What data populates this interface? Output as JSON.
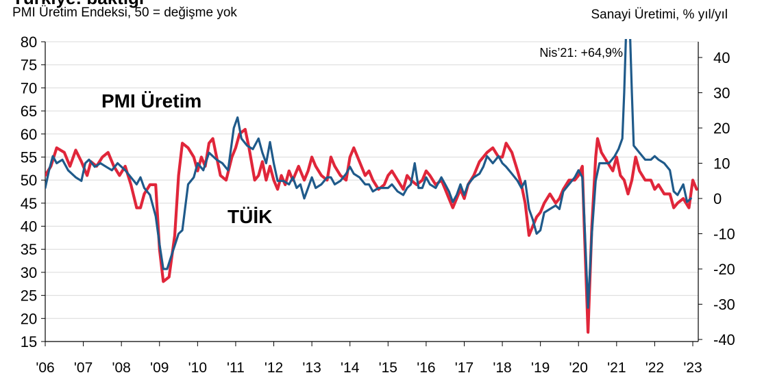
{
  "header": {
    "cut_title": "Türkiye: baktığı",
    "left_axis_title": "PMI Üretim Endeksi, 50 = değişme yok",
    "right_axis_title": "Sanayi Üretimi, % yıl/yıl"
  },
  "colors": {
    "pmi": "#e0263a",
    "tuik": "#1f5a8a",
    "title_cut": "#1f5a8a"
  },
  "chart_data": {
    "type": "line",
    "x_tick_labels": [
      "'06",
      "'07",
      "'08",
      "'09",
      "'10",
      "'11",
      "'12",
      "'13",
      "'14",
      "'15",
      "'16",
      "'17",
      "'18",
      "'19",
      "'20",
      "'21",
      "'22",
      "'23"
    ],
    "y_left": {
      "min": 15,
      "max": 80,
      "ticks": [
        15,
        20,
        25,
        30,
        35,
        40,
        45,
        50,
        55,
        60,
        65,
        70,
        75,
        80
      ]
    },
    "y_right": {
      "min": -40,
      "max": 45,
      "ticks": [
        -40,
        -30,
        -20,
        -10,
        0,
        10,
        20,
        30,
        40
      ]
    },
    "grid": true,
    "series": [
      {
        "name": "PMI Üretim",
        "axis": "left",
        "points": [
          [
            2006.0,
            51
          ],
          [
            2006.15,
            53
          ],
          [
            2006.3,
            57
          ],
          [
            2006.5,
            56
          ],
          [
            2006.65,
            53
          ],
          [
            2006.8,
            56.5
          ],
          [
            2006.95,
            54
          ],
          [
            2007.1,
            51
          ],
          [
            2007.2,
            54
          ],
          [
            2007.35,
            53
          ],
          [
            2007.5,
            55
          ],
          [
            2007.65,
            56
          ],
          [
            2007.8,
            53
          ],
          [
            2007.95,
            51
          ],
          [
            2008.1,
            53
          ],
          [
            2008.25,
            49
          ],
          [
            2008.4,
            44
          ],
          [
            2008.5,
            44
          ],
          [
            2008.6,
            47
          ],
          [
            2008.75,
            49
          ],
          [
            2008.9,
            49
          ],
          [
            2009.0,
            35
          ],
          [
            2009.1,
            28
          ],
          [
            2009.25,
            29
          ],
          [
            2009.4,
            38
          ],
          [
            2009.5,
            51
          ],
          [
            2009.6,
            58
          ],
          [
            2009.75,
            57
          ],
          [
            2009.9,
            55
          ],
          [
            2010.0,
            52
          ],
          [
            2010.1,
            55
          ],
          [
            2010.2,
            53
          ],
          [
            2010.3,
            58
          ],
          [
            2010.4,
            59
          ],
          [
            2010.5,
            55
          ],
          [
            2010.6,
            51
          ],
          [
            2010.75,
            50
          ],
          [
            2010.9,
            55
          ],
          [
            2011.0,
            57
          ],
          [
            2011.1,
            60
          ],
          [
            2011.25,
            61
          ],
          [
            2011.35,
            57
          ],
          [
            2011.5,
            50
          ],
          [
            2011.6,
            51
          ],
          [
            2011.7,
            54
          ],
          [
            2011.8,
            50
          ],
          [
            2011.9,
            53
          ],
          [
            2012.0,
            50
          ],
          [
            2012.1,
            48
          ],
          [
            2012.2,
            51
          ],
          [
            2012.3,
            49
          ],
          [
            2012.4,
            52
          ],
          [
            2012.5,
            50
          ],
          [
            2012.65,
            53
          ],
          [
            2012.8,
            50
          ],
          [
            2012.9,
            52
          ],
          [
            2013.0,
            55
          ],
          [
            2013.1,
            53
          ],
          [
            2013.25,
            51
          ],
          [
            2013.4,
            50
          ],
          [
            2013.5,
            55
          ],
          [
            2013.6,
            53
          ],
          [
            2013.75,
            51
          ],
          [
            2013.9,
            50
          ],
          [
            2014.0,
            55
          ],
          [
            2014.1,
            57
          ],
          [
            2014.25,
            54
          ],
          [
            2014.4,
            51
          ],
          [
            2014.5,
            52
          ],
          [
            2014.6,
            50
          ],
          [
            2014.75,
            48
          ],
          [
            2014.9,
            49
          ],
          [
            2015.0,
            51
          ],
          [
            2015.1,
            52
          ],
          [
            2015.25,
            50
          ],
          [
            2015.4,
            48
          ],
          [
            2015.5,
            51
          ],
          [
            2015.6,
            50
          ],
          [
            2015.75,
            49
          ],
          [
            2015.9,
            50
          ],
          [
            2016.0,
            52
          ],
          [
            2016.1,
            51
          ],
          [
            2016.25,
            49
          ],
          [
            2016.4,
            50
          ],
          [
            2016.5,
            48
          ],
          [
            2016.6,
            46
          ],
          [
            2016.7,
            44
          ],
          [
            2016.8,
            46
          ],
          [
            2016.9,
            48
          ],
          [
            2017.0,
            46
          ],
          [
            2017.1,
            49
          ],
          [
            2017.25,
            51
          ],
          [
            2017.4,
            54
          ],
          [
            2017.5,
            55
          ],
          [
            2017.6,
            56
          ],
          [
            2017.75,
            57
          ],
          [
            2017.9,
            55
          ],
          [
            2018.0,
            55
          ],
          [
            2018.1,
            58
          ],
          [
            2018.25,
            56
          ],
          [
            2018.4,
            52
          ],
          [
            2018.5,
            49
          ],
          [
            2018.6,
            45
          ],
          [
            2018.7,
            38
          ],
          [
            2018.8,
            40
          ],
          [
            2018.9,
            42
          ],
          [
            2019.0,
            43
          ],
          [
            2019.1,
            45
          ],
          [
            2019.25,
            47
          ],
          [
            2019.4,
            45
          ],
          [
            2019.5,
            46
          ],
          [
            2019.6,
            48
          ],
          [
            2019.75,
            50
          ],
          [
            2019.9,
            50
          ],
          [
            2020.0,
            51
          ],
          [
            2020.1,
            53
          ],
          [
            2020.15,
            40
          ],
          [
            2020.25,
            17
          ],
          [
            2020.35,
            40
          ],
          [
            2020.45,
            55
          ],
          [
            2020.5,
            59
          ],
          [
            2020.6,
            56
          ],
          [
            2020.75,
            54
          ],
          [
            2020.9,
            52
          ],
          [
            2021.0,
            55
          ],
          [
            2021.1,
            51
          ],
          [
            2021.2,
            50
          ],
          [
            2021.3,
            47
          ],
          [
            2021.4,
            50
          ],
          [
            2021.5,
            55
          ],
          [
            2021.6,
            52
          ],
          [
            2021.75,
            50
          ],
          [
            2021.9,
            50
          ],
          [
            2022.0,
            48
          ],
          [
            2022.1,
            49
          ],
          [
            2022.25,
            47
          ],
          [
            2022.4,
            47
          ],
          [
            2022.5,
            44
          ],
          [
            2022.6,
            45
          ],
          [
            2022.75,
            46
          ],
          [
            2022.9,
            44
          ],
          [
            2023.0,
            50
          ],
          [
            2023.1,
            48
          ]
        ]
      },
      {
        "name": "TÜİK",
        "axis": "right",
        "points": [
          [
            2006.0,
            3
          ],
          [
            2006.1,
            8
          ],
          [
            2006.2,
            12
          ],
          [
            2006.3,
            10
          ],
          [
            2006.45,
            11
          ],
          [
            2006.6,
            8
          ],
          [
            2006.8,
            6
          ],
          [
            2006.95,
            5
          ],
          [
            2007.05,
            10
          ],
          [
            2007.15,
            11
          ],
          [
            2007.3,
            9
          ],
          [
            2007.45,
            10
          ],
          [
            2007.6,
            9
          ],
          [
            2007.75,
            8
          ],
          [
            2007.9,
            10
          ],
          [
            2008.0,
            9
          ],
          [
            2008.1,
            8
          ],
          [
            2008.25,
            6
          ],
          [
            2008.4,
            4
          ],
          [
            2008.5,
            6
          ],
          [
            2008.6,
            3
          ],
          [
            2008.75,
            1
          ],
          [
            2008.9,
            -5
          ],
          [
            2009.0,
            -13
          ],
          [
            2009.1,
            -20
          ],
          [
            2009.2,
            -20
          ],
          [
            2009.35,
            -15
          ],
          [
            2009.5,
            -10
          ],
          [
            2009.6,
            -9
          ],
          [
            2009.75,
            4
          ],
          [
            2009.9,
            6
          ],
          [
            2010.0,
            10
          ],
          [
            2010.15,
            8
          ],
          [
            2010.3,
            13
          ],
          [
            2010.5,
            11
          ],
          [
            2010.65,
            10
          ],
          [
            2010.8,
            8
          ],
          [
            2010.95,
            20
          ],
          [
            2011.05,
            23
          ],
          [
            2011.15,
            17
          ],
          [
            2011.3,
            15
          ],
          [
            2011.45,
            14
          ],
          [
            2011.6,
            17
          ],
          [
            2011.7,
            13
          ],
          [
            2011.8,
            10
          ],
          [
            2011.9,
            16
          ],
          [
            2012.0,
            10
          ],
          [
            2012.1,
            5
          ],
          [
            2012.25,
            5
          ],
          [
            2012.4,
            4
          ],
          [
            2012.5,
            6
          ],
          [
            2012.6,
            3
          ],
          [
            2012.7,
            4
          ],
          [
            2012.8,
            0
          ],
          [
            2012.9,
            3
          ],
          [
            2013.0,
            6
          ],
          [
            2013.1,
            3
          ],
          [
            2013.25,
            4
          ],
          [
            2013.4,
            6
          ],
          [
            2013.5,
            6
          ],
          [
            2013.6,
            4
          ],
          [
            2013.75,
            5
          ],
          [
            2013.9,
            7
          ],
          [
            2014.0,
            9
          ],
          [
            2014.1,
            7
          ],
          [
            2014.25,
            6
          ],
          [
            2014.4,
            4
          ],
          [
            2014.5,
            4
          ],
          [
            2014.6,
            2
          ],
          [
            2014.75,
            3
          ],
          [
            2014.9,
            3
          ],
          [
            2015.0,
            3
          ],
          [
            2015.1,
            4
          ],
          [
            2015.25,
            2
          ],
          [
            2015.4,
            1
          ],
          [
            2015.5,
            3
          ],
          [
            2015.6,
            4
          ],
          [
            2015.7,
            10
          ],
          [
            2015.8,
            3
          ],
          [
            2015.9,
            3
          ],
          [
            2016.0,
            6
          ],
          [
            2016.1,
            4
          ],
          [
            2016.25,
            3
          ],
          [
            2016.4,
            6
          ],
          [
            2016.5,
            4
          ],
          [
            2016.6,
            2
          ],
          [
            2016.7,
            -1
          ],
          [
            2016.8,
            1
          ],
          [
            2016.9,
            4
          ],
          [
            2017.0,
            1
          ],
          [
            2017.1,
            4
          ],
          [
            2017.25,
            6
          ],
          [
            2017.4,
            7
          ],
          [
            2017.5,
            9
          ],
          [
            2017.6,
            12
          ],
          [
            2017.75,
            10
          ],
          [
            2017.9,
            12
          ],
          [
            2018.0,
            10
          ],
          [
            2018.1,
            9
          ],
          [
            2018.25,
            7
          ],
          [
            2018.4,
            5
          ],
          [
            2018.5,
            3
          ],
          [
            2018.6,
            5
          ],
          [
            2018.7,
            -3
          ],
          [
            2018.8,
            -6
          ],
          [
            2018.9,
            -10
          ],
          [
            2019.0,
            -9
          ],
          [
            2019.1,
            -4
          ],
          [
            2019.25,
            -3
          ],
          [
            2019.4,
            -2
          ],
          [
            2019.5,
            -3
          ],
          [
            2019.6,
            2
          ],
          [
            2019.75,
            4
          ],
          [
            2019.9,
            6
          ],
          [
            2020.0,
            8
          ],
          [
            2020.1,
            6
          ],
          [
            2020.15,
            -5
          ],
          [
            2020.25,
            -31
          ],
          [
            2020.35,
            -10
          ],
          [
            2020.45,
            5
          ],
          [
            2020.55,
            10
          ],
          [
            2020.7,
            10
          ],
          [
            2020.8,
            10
          ],
          [
            2020.95,
            12
          ],
          [
            2021.05,
            14
          ],
          [
            2021.15,
            17
          ],
          [
            2021.2,
            30
          ],
          [
            2021.3,
            64.9
          ],
          [
            2021.4,
            30
          ],
          [
            2021.45,
            15
          ],
          [
            2021.6,
            13
          ],
          [
            2021.75,
            11
          ],
          [
            2021.9,
            11
          ],
          [
            2022.0,
            12
          ],
          [
            2022.1,
            11
          ],
          [
            2022.25,
            10
          ],
          [
            2022.4,
            8
          ],
          [
            2022.5,
            2
          ],
          [
            2022.6,
            1
          ],
          [
            2022.75,
            4
          ],
          [
            2022.85,
            -1
          ],
          [
            2022.95,
            0
          ]
        ]
      }
    ],
    "annotations": [
      {
        "text": "PMI Üretim",
        "series": "PMI Üretim"
      },
      {
        "text": "TÜİK",
        "series": "TÜİK"
      },
      {
        "text": "Nis’21: +64,9%",
        "x": 2021.3,
        "y": 64.9
      }
    ]
  }
}
